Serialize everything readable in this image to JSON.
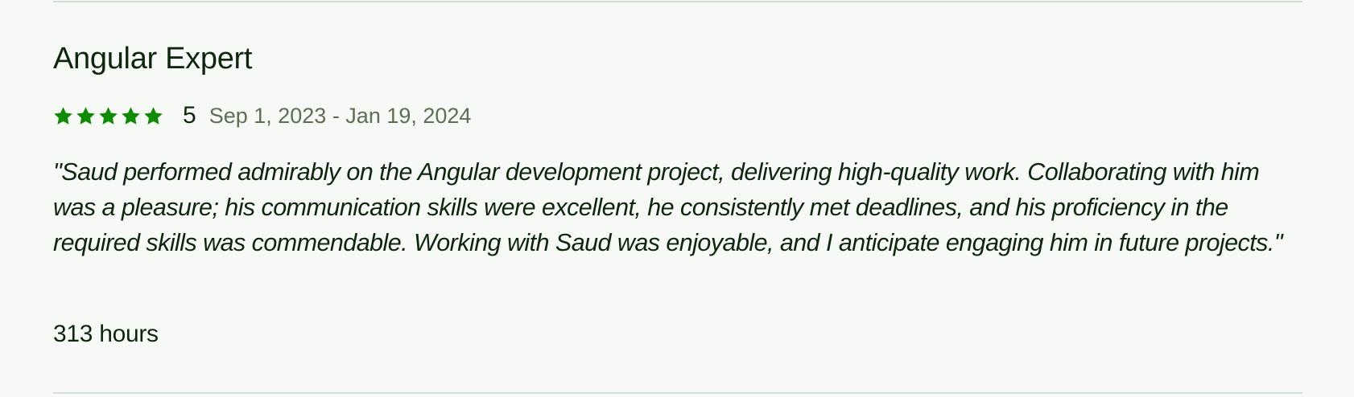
{
  "review": {
    "title": "Angular Expert",
    "rating": {
      "stars_filled": 5,
      "stars_total": 5,
      "score": "5",
      "star_color": "#108a00"
    },
    "dates": "Sep 1, 2023 - Jan 19, 2024",
    "comment": "\"Saud performed admirably on the Angular development project, delivering high-quality work. Collaborating with him was a pleasure; his communication skills were excellent, he consistently met deadlines, and his proficiency in the required skills was commendable. Working with Saud was enjoyable, and I anticipate engaging him in future projects.\"",
    "hours": "313 hours"
  },
  "colors": {
    "background": "#f7f9f7",
    "text": "#0e260e",
    "muted_text": "#5e6d55",
    "divider": "#d5e0d5"
  }
}
